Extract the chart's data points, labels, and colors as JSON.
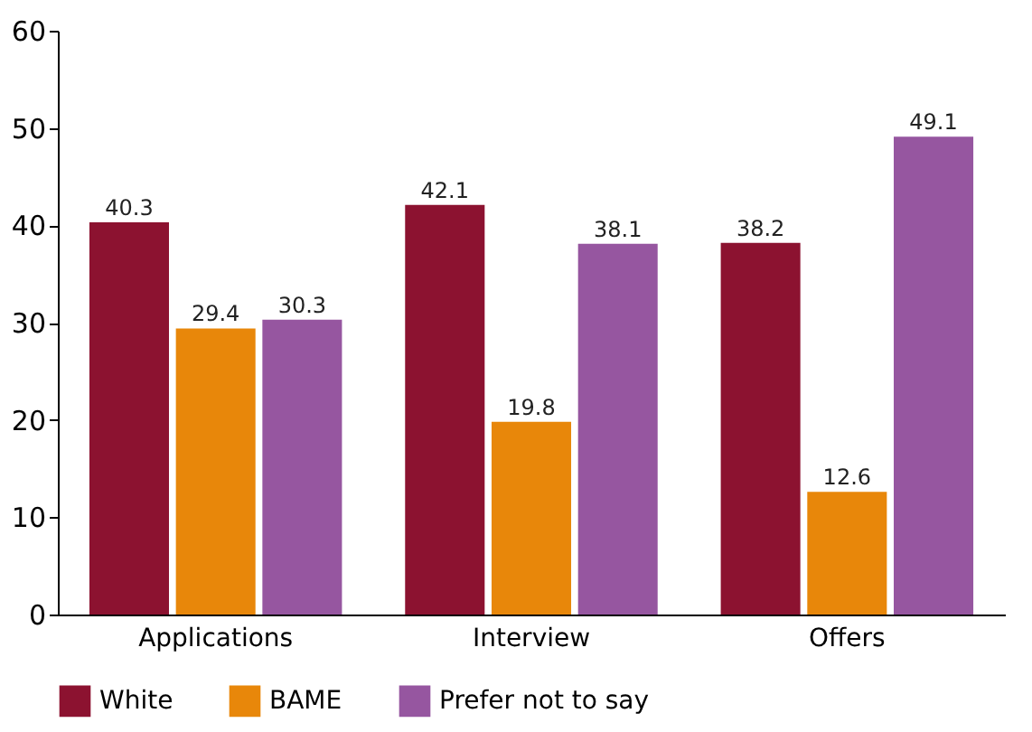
{
  "chart_data": {
    "type": "bar",
    "categories": [
      "Applications",
      "Interview",
      "Offers"
    ],
    "series": [
      {
        "name": "White",
        "color": "#8c1230",
        "values": [
          40.3,
          42.1,
          38.2
        ]
      },
      {
        "name": "BAME",
        "color": "#e8870a",
        "values": [
          29.4,
          19.8,
          12.6
        ]
      },
      {
        "name": "Prefer not to say",
        "color": "#9656a0",
        "values": [
          30.3,
          38.1,
          49.1
        ]
      }
    ],
    "ylim": [
      0,
      60
    ],
    "yticks": [
      0,
      10,
      20,
      30,
      40,
      50,
      60
    ],
    "grid": false,
    "legend": "bottom",
    "data_labels": true
  }
}
